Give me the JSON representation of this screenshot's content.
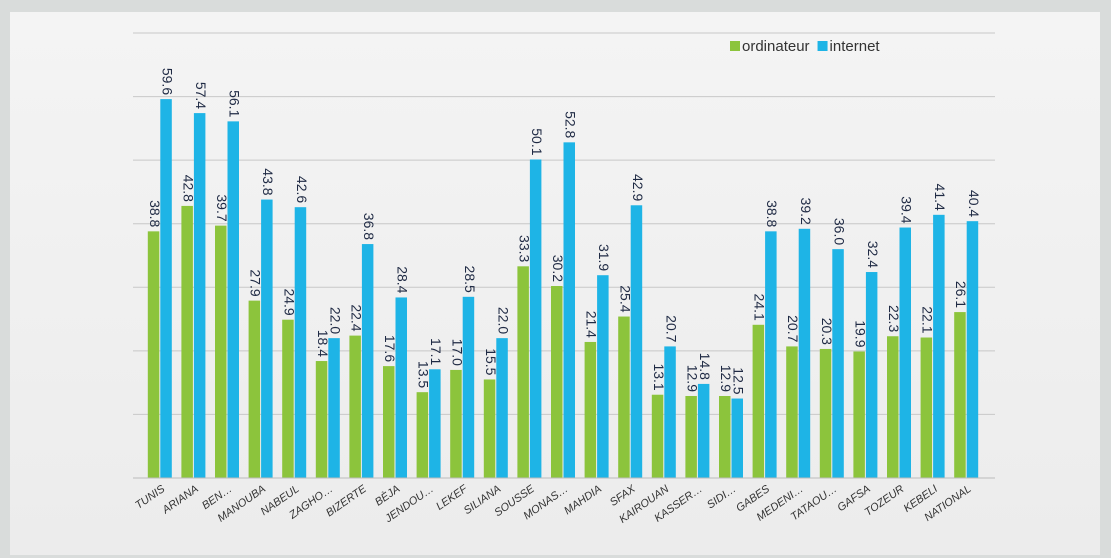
{
  "chart_data": {
    "type": "bar",
    "categories": [
      "TUNIS",
      "ARIANA",
      "BEN…",
      "MANOUBA",
      "NABEUL",
      "ZAGHO…",
      "BIZERTE",
      "BÈJA",
      "JENDOU…",
      "LEKEF",
      "SILIANA",
      "SOUSSE",
      "MONAS…",
      "MAHDIA",
      "SFAX",
      "KAIROUAN",
      "KASSER…",
      "SIDI…",
      "GABES",
      "MEDENI…",
      "TATAOU…",
      "GAFSA",
      "TOZEUR",
      "KEBELI",
      "NATIONAL"
    ],
    "series": [
      {
        "name": "ordinateur",
        "color": "#8cc43c",
        "values": [
          38.8,
          42.8,
          39.7,
          27.9,
          24.9,
          18.4,
          22.4,
          17.6,
          13.5,
          17.0,
          15.5,
          33.3,
          30.2,
          21.4,
          25.4,
          13.1,
          12.9,
          12.9,
          24.1,
          20.7,
          20.3,
          19.9,
          22.3,
          22.1,
          26.1
        ],
        "value_labels": [
          "38.8",
          "42.8",
          "39.7",
          "27.9",
          "24.9",
          "18.4",
          "22.4",
          "17.6",
          "13.5",
          "17.0",
          "15.5",
          "33.3",
          "30.2",
          "21.4",
          "25.4",
          "13.1",
          "12.9",
          "12.9",
          "24.1",
          "20.7",
          "20.3",
          "19.9",
          "22.3",
          "22.1",
          "26.1"
        ]
      },
      {
        "name": "internet",
        "color": "#1eb4e6",
        "values": [
          59.6,
          57.4,
          56.1,
          43.8,
          42.6,
          22.0,
          36.8,
          28.4,
          17.1,
          28.5,
          22.0,
          50.1,
          52.8,
          31.9,
          42.9,
          20.7,
          14.8,
          12.5,
          38.8,
          39.2,
          36.0,
          32.4,
          39.4,
          41.4,
          40.4
        ],
        "value_labels": [
          "59.6",
          "57.4",
          "56.1",
          "43.8",
          "42.6",
          "22.0",
          "36.8",
          "28.4",
          "17.1",
          "28.5",
          "22.0",
          "50.1",
          "52.8",
          "31.9",
          "42.9",
          "20.7",
          "14.8",
          "12.5",
          "38.8",
          "39.2",
          "36.0",
          "32.4",
          "39.4",
          "41.4",
          "40.4"
        ]
      }
    ],
    "ylim": [
      0,
      70
    ],
    "yticks": [
      0,
      10,
      20,
      30,
      40,
      50,
      60,
      70
    ],
    "grid": true,
    "legend": "top-right"
  }
}
